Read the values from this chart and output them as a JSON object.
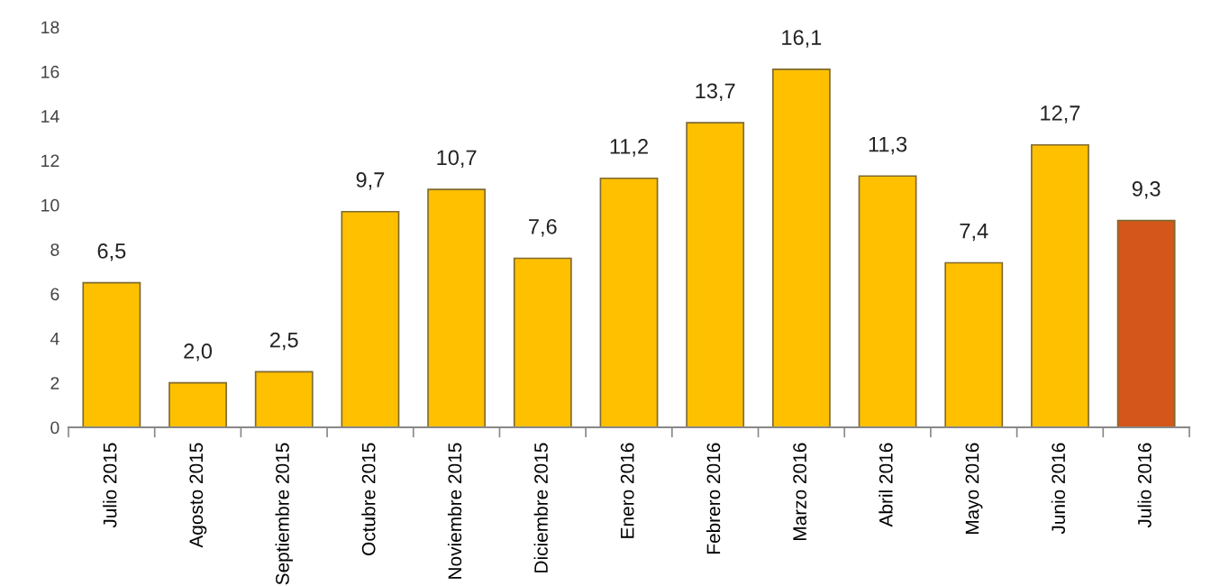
{
  "chart_data": {
    "type": "bar",
    "categories": [
      "Julio 2015",
      "Agosto 2015",
      "Septiembre 2015",
      "Octubre 2015",
      "Noviembre 2015",
      "Diciembre 2015",
      "Enero 2016",
      "Febrero 2016",
      "Marzo 2016",
      "Abril 2016",
      "Mayo 2016",
      "Junio 2016",
      "Julio 2016"
    ],
    "values": [
      6.5,
      2.0,
      2.5,
      9.7,
      10.7,
      7.6,
      11.2,
      13.7,
      16.1,
      11.3,
      7.4,
      12.7,
      9.3
    ],
    "colors": [
      "#ffc000",
      "#ffc000",
      "#ffc000",
      "#ffc000",
      "#ffc000",
      "#ffc000",
      "#ffc000",
      "#ffc000",
      "#ffc000",
      "#ffc000",
      "#ffc000",
      "#ffc000",
      "#d4561a"
    ],
    "value_labels": [
      "6,5",
      "2,0",
      "2,5",
      "9,7",
      "10,7",
      "7,6",
      "11,2",
      "13,7",
      "16,1",
      "11,3",
      "7,4",
      "12,7",
      "9,3"
    ],
    "ylim": [
      0,
      18
    ],
    "yticks": [
      0,
      2,
      4,
      6,
      8,
      10,
      12,
      14,
      16,
      18
    ],
    "grid": false,
    "legend": false
  }
}
